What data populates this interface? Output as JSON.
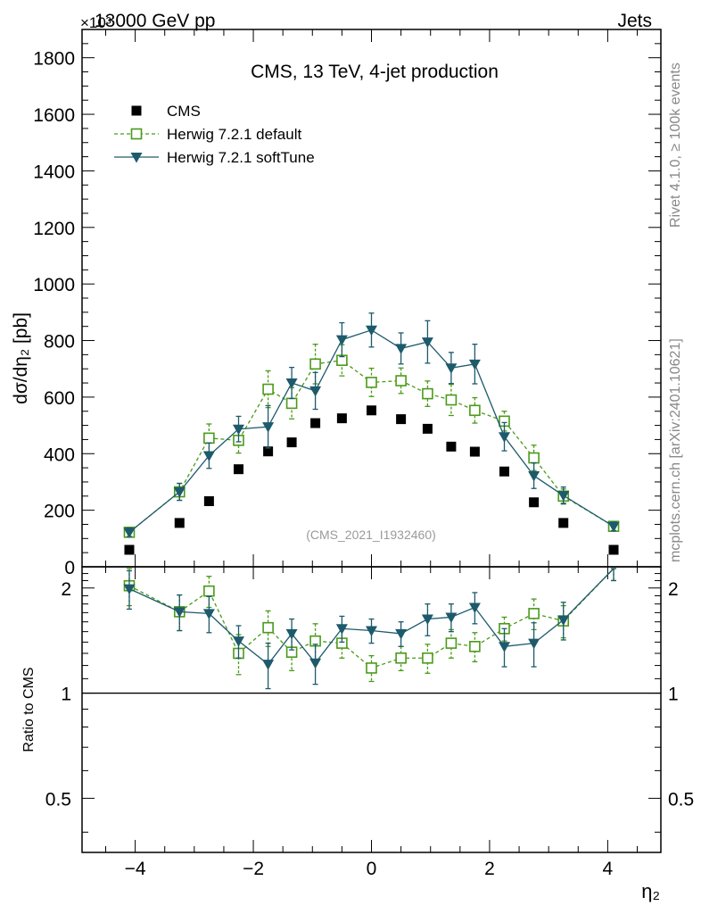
{
  "header": {
    "top_left": "13000 GeV pp",
    "scale_exp": "×10³",
    "top_right": "Jets",
    "side_upper": "Rivet 4.1.0, ≥ 100k events",
    "side_lower": "mcplots.cern.ch [arXiv:2401.10621]"
  },
  "colors": {
    "cms": "#000000",
    "default": "#4a9a1a",
    "softtune": "#1d5a6c",
    "watermark": "#9a9a9a",
    "sidetext": "#888888"
  },
  "chart_data": [
    {
      "type": "scatter",
      "panel": "main",
      "title": "CMS, 13 TeV, 4-jet production",
      "watermark": "(CMS_2021_I1932460)",
      "ylabel": "dσ/dη₂ [pb]",
      "y_scale_factor": "10^3",
      "xlim": [
        -4.9,
        4.9
      ],
      "ylim": [
        0,
        1900
      ],
      "yticks": [
        0,
        200,
        400,
        600,
        800,
        1000,
        1200,
        1400,
        1600,
        1800
      ],
      "ytick_labels": [
        "0",
        "200",
        "400",
        "600",
        "800",
        "1000",
        "1200",
        "1400",
        "1600",
        "1800"
      ],
      "legend": [
        "CMS",
        "Herwig 7.2.1 default",
        "Herwig 7.2.1 softTune"
      ],
      "x": [
        -4.1,
        -3.25,
        -2.75,
        -2.25,
        -1.75,
        -1.35,
        -0.95,
        -0.5,
        0,
        0.5,
        0.95,
        1.35,
        1.75,
        2.25,
        2.75,
        3.25,
        4.1
      ],
      "series": [
        {
          "name": "CMS",
          "marker": "square",
          "values": [
            60,
            155,
            232,
            345,
            408,
            440,
            508,
            525,
            553,
            522,
            488,
            425,
            407,
            337,
            228,
            155,
            60
          ]
        },
        {
          "name": "Herwig 7.2.1 default",
          "marker": "open-square",
          "line": "dashed",
          "values": [
            122,
            265,
            455,
            447,
            628,
            578,
            717,
            730,
            652,
            658,
            612,
            590,
            553,
            515,
            385,
            250,
            143
          ],
          "errors": [
            15,
            30,
            50,
            45,
            65,
            55,
            70,
            55,
            50,
            45,
            45,
            55,
            45,
            35,
            45,
            25,
            15
          ]
        },
        {
          "name": "Herwig 7.2.1 softTune",
          "marker": "triangle-down",
          "line": "solid",
          "values": [
            122,
            265,
            393,
            487,
            495,
            650,
            622,
            803,
            837,
            772,
            795,
            703,
            717,
            460,
            322,
            252,
            143
          ],
          "errors": [
            15,
            30,
            45,
            45,
            75,
            55,
            65,
            60,
            60,
            55,
            75,
            55,
            70,
            50,
            45,
            30,
            15
          ]
        }
      ]
    },
    {
      "type": "scatter",
      "panel": "ratio",
      "ylabel": "Ratio to CMS",
      "xlabel": "η₂",
      "xlim": [
        -4.9,
        4.9
      ],
      "ylim": [
        0.35,
        2.3
      ],
      "y_scale": "log",
      "yticks": [
        0.5,
        1,
        2
      ],
      "ytick_labels": [
        "0.5",
        "1",
        "2"
      ],
      "xticks": [
        -4,
        -2,
        0,
        2,
        4
      ],
      "xtick_labels": [
        "−4",
        "−2",
        "0",
        "2",
        "4"
      ],
      "reference_line": 1,
      "x": [
        -4.1,
        -3.25,
        -2.75,
        -2.25,
        -1.75,
        -1.35,
        -0.95,
        -0.5,
        0,
        0.5,
        0.95,
        1.35,
        1.75,
        2.25,
        2.75,
        3.25,
        4.1
      ],
      "series": [
        {
          "name": "Herwig 7.2.1 default",
          "values": [
            2.03,
            1.71,
            1.96,
            1.3,
            1.54,
            1.31,
            1.41,
            1.39,
            1.18,
            1.26,
            1.26,
            1.39,
            1.36,
            1.53,
            1.69,
            1.61,
            2.38
          ],
          "errors": [
            0.25,
            0.2,
            0.2,
            0.17,
            0.18,
            0.15,
            0.17,
            0.13,
            0.1,
            0.1,
            0.12,
            0.13,
            0.13,
            0.12,
            0.17,
            0.17,
            0.28
          ]
        },
        {
          "name": "Herwig 7.2.1 softTune",
          "values": [
            1.99,
            1.71,
            1.69,
            1.41,
            1.21,
            1.48,
            1.22,
            1.53,
            1.51,
            1.48,
            1.63,
            1.65,
            1.76,
            1.36,
            1.39,
            1.62,
            2.38
          ],
          "errors": [
            0.25,
            0.2,
            0.2,
            0.15,
            0.18,
            0.15,
            0.16,
            0.13,
            0.12,
            0.12,
            0.17,
            0.15,
            0.18,
            0.17,
            0.2,
            0.2,
            0.28
          ]
        }
      ]
    }
  ]
}
